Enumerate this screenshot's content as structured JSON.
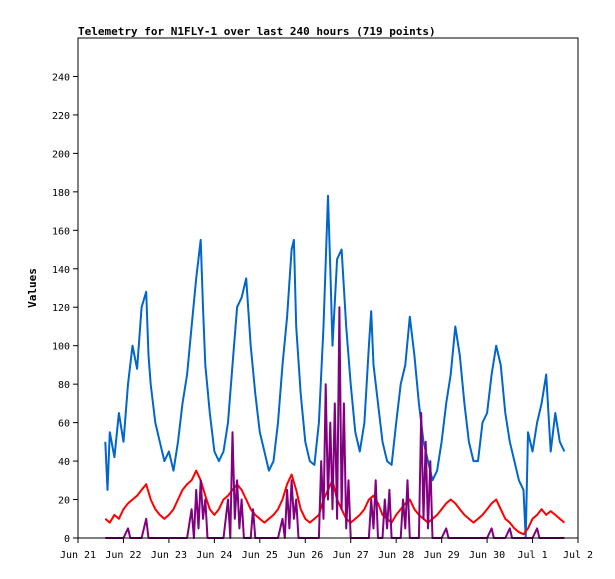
{
  "chart_data": {
    "type": "line",
    "title": "Telemetry for N1FLY-1 over last 240 hours (719 points)",
    "xlabel": "",
    "ylabel": "Values",
    "ylim": [
      0,
      260
    ],
    "y_ticks": [
      0,
      20,
      40,
      60,
      80,
      100,
      120,
      140,
      160,
      180,
      200,
      220,
      240
    ],
    "x_ticks": [
      "Jun 21",
      "Jun 22",
      "Jun 23",
      "Jun 24",
      "Jun 25",
      "Jun 26",
      "Jun 27",
      "Jun 28",
      "Jun 29",
      "Jun 30",
      "Jul 1",
      "Jul 2"
    ],
    "x_range_days": [
      0,
      11
    ],
    "grid": false,
    "colors": {
      "blue": "#0066cc",
      "red": "#ff0000",
      "purple": "#800080",
      "axis": "#000000"
    },
    "series": [
      {
        "color": "#0066cc",
        "points": [
          [
            0.6,
            50
          ],
          [
            0.65,
            25
          ],
          [
            0.7,
            55
          ],
          [
            0.8,
            42
          ],
          [
            0.9,
            65
          ],
          [
            1.0,
            50
          ],
          [
            1.1,
            80
          ],
          [
            1.2,
            100
          ],
          [
            1.3,
            88
          ],
          [
            1.4,
            120
          ],
          [
            1.5,
            128
          ],
          [
            1.55,
            95
          ],
          [
            1.6,
            80
          ],
          [
            1.7,
            60
          ],
          [
            1.8,
            50
          ],
          [
            1.9,
            40
          ],
          [
            2.0,
            45
          ],
          [
            2.1,
            35
          ],
          [
            2.2,
            50
          ],
          [
            2.3,
            70
          ],
          [
            2.4,
            85
          ],
          [
            2.5,
            110
          ],
          [
            2.6,
            135
          ],
          [
            2.7,
            155
          ],
          [
            2.75,
            120
          ],
          [
            2.8,
            90
          ],
          [
            2.9,
            65
          ],
          [
            3.0,
            45
          ],
          [
            3.1,
            40
          ],
          [
            3.2,
            45
          ],
          [
            3.3,
            60
          ],
          [
            3.4,
            90
          ],
          [
            3.5,
            120
          ],
          [
            3.6,
            125
          ],
          [
            3.7,
            135
          ],
          [
            3.8,
            100
          ],
          [
            3.9,
            75
          ],
          [
            4.0,
            55
          ],
          [
            4.1,
            45
          ],
          [
            4.2,
            35
          ],
          [
            4.3,
            40
          ],
          [
            4.4,
            60
          ],
          [
            4.5,
            90
          ],
          [
            4.6,
            115
          ],
          [
            4.7,
            150
          ],
          [
            4.75,
            155
          ],
          [
            4.8,
            110
          ],
          [
            4.9,
            75
          ],
          [
            5.0,
            50
          ],
          [
            5.1,
            40
          ],
          [
            5.2,
            38
          ],
          [
            5.3,
            60
          ],
          [
            5.4,
            110
          ],
          [
            5.5,
            178
          ],
          [
            5.55,
            140
          ],
          [
            5.6,
            100
          ],
          [
            5.7,
            145
          ],
          [
            5.8,
            150
          ],
          [
            5.9,
            110
          ],
          [
            6.0,
            80
          ],
          [
            6.1,
            55
          ],
          [
            6.2,
            45
          ],
          [
            6.3,
            60
          ],
          [
            6.4,
            100
          ],
          [
            6.45,
            118
          ],
          [
            6.5,
            90
          ],
          [
            6.6,
            70
          ],
          [
            6.7,
            50
          ],
          [
            6.8,
            40
          ],
          [
            6.9,
            38
          ],
          [
            7.0,
            60
          ],
          [
            7.1,
            80
          ],
          [
            7.2,
            90
          ],
          [
            7.3,
            115
          ],
          [
            7.4,
            95
          ],
          [
            7.5,
            70
          ],
          [
            7.6,
            50
          ],
          [
            7.7,
            40
          ],
          [
            7.8,
            30
          ],
          [
            7.9,
            35
          ],
          [
            8.0,
            50
          ],
          [
            8.1,
            70
          ],
          [
            8.2,
            85
          ],
          [
            8.3,
            110
          ],
          [
            8.4,
            95
          ],
          [
            8.5,
            70
          ],
          [
            8.6,
            50
          ],
          [
            8.7,
            40
          ],
          [
            8.8,
            40
          ],
          [
            8.9,
            60
          ],
          [
            9.0,
            65
          ],
          [
            9.1,
            85
          ],
          [
            9.2,
            100
          ],
          [
            9.3,
            90
          ],
          [
            9.4,
            65
          ],
          [
            9.5,
            50
          ],
          [
            9.6,
            40
          ],
          [
            9.7,
            30
          ],
          [
            9.8,
            25
          ],
          [
            9.85,
            0
          ],
          [
            9.9,
            55
          ],
          [
            10.0,
            45
          ],
          [
            10.1,
            60
          ],
          [
            10.2,
            70
          ],
          [
            10.3,
            85
          ],
          [
            10.4,
            45
          ],
          [
            10.5,
            65
          ],
          [
            10.6,
            50
          ],
          [
            10.7,
            45
          ]
        ]
      },
      {
        "color": "#ff0000",
        "points": [
          [
            0.6,
            10
          ],
          [
            0.7,
            8
          ],
          [
            0.8,
            12
          ],
          [
            0.9,
            10
          ],
          [
            1.0,
            15
          ],
          [
            1.1,
            18
          ],
          [
            1.2,
            20
          ],
          [
            1.3,
            22
          ],
          [
            1.4,
            25
          ],
          [
            1.5,
            28
          ],
          [
            1.6,
            20
          ],
          [
            1.7,
            15
          ],
          [
            1.8,
            12
          ],
          [
            1.9,
            10
          ],
          [
            2.0,
            12
          ],
          [
            2.1,
            15
          ],
          [
            2.2,
            20
          ],
          [
            2.3,
            25
          ],
          [
            2.4,
            28
          ],
          [
            2.5,
            30
          ],
          [
            2.6,
            35
          ],
          [
            2.7,
            30
          ],
          [
            2.8,
            22
          ],
          [
            2.9,
            15
          ],
          [
            3.0,
            12
          ],
          [
            3.1,
            15
          ],
          [
            3.2,
            20
          ],
          [
            3.3,
            22
          ],
          [
            3.4,
            25
          ],
          [
            3.5,
            28
          ],
          [
            3.6,
            25
          ],
          [
            3.7,
            20
          ],
          [
            3.8,
            15
          ],
          [
            3.9,
            12
          ],
          [
            4.0,
            10
          ],
          [
            4.1,
            8
          ],
          [
            4.2,
            10
          ],
          [
            4.3,
            12
          ],
          [
            4.4,
            15
          ],
          [
            4.5,
            20
          ],
          [
            4.6,
            28
          ],
          [
            4.7,
            33
          ],
          [
            4.8,
            25
          ],
          [
            4.9,
            15
          ],
          [
            5.0,
            10
          ],
          [
            5.1,
            8
          ],
          [
            5.2,
            10
          ],
          [
            5.3,
            12
          ],
          [
            5.4,
            20
          ],
          [
            5.5,
            25
          ],
          [
            5.6,
            30
          ],
          [
            5.7,
            20
          ],
          [
            5.8,
            15
          ],
          [
            5.9,
            10
          ],
          [
            6.0,
            8
          ],
          [
            6.1,
            10
          ],
          [
            6.2,
            12
          ],
          [
            6.3,
            15
          ],
          [
            6.4,
            20
          ],
          [
            6.5,
            22
          ],
          [
            6.6,
            18
          ],
          [
            6.7,
            12
          ],
          [
            6.8,
            10
          ],
          [
            6.9,
            8
          ],
          [
            7.0,
            12
          ],
          [
            7.1,
            15
          ],
          [
            7.2,
            18
          ],
          [
            7.3,
            20
          ],
          [
            7.4,
            15
          ],
          [
            7.5,
            12
          ],
          [
            7.6,
            10
          ],
          [
            7.7,
            8
          ],
          [
            7.8,
            10
          ],
          [
            7.9,
            12
          ],
          [
            8.0,
            15
          ],
          [
            8.1,
            18
          ],
          [
            8.2,
            20
          ],
          [
            8.3,
            18
          ],
          [
            8.4,
            15
          ],
          [
            8.5,
            12
          ],
          [
            8.6,
            10
          ],
          [
            8.7,
            8
          ],
          [
            8.8,
            10
          ],
          [
            8.9,
            12
          ],
          [
            9.0,
            15
          ],
          [
            9.1,
            18
          ],
          [
            9.2,
            20
          ],
          [
            9.3,
            15
          ],
          [
            9.4,
            10
          ],
          [
            9.5,
            8
          ],
          [
            9.6,
            5
          ],
          [
            9.7,
            3
          ],
          [
            9.8,
            2
          ],
          [
            9.9,
            5
          ],
          [
            10.0,
            10
          ],
          [
            10.1,
            12
          ],
          [
            10.2,
            15
          ],
          [
            10.3,
            12
          ],
          [
            10.4,
            14
          ],
          [
            10.5,
            12
          ],
          [
            10.6,
            10
          ],
          [
            10.7,
            8
          ]
        ]
      },
      {
        "color": "#800080",
        "points": [
          [
            0.6,
            0
          ],
          [
            1.0,
            0
          ],
          [
            1.1,
            5
          ],
          [
            1.15,
            0
          ],
          [
            1.4,
            0
          ],
          [
            1.5,
            10
          ],
          [
            1.55,
            0
          ],
          [
            2.4,
            0
          ],
          [
            2.5,
            15
          ],
          [
            2.55,
            0
          ],
          [
            2.6,
            25
          ],
          [
            2.65,
            5
          ],
          [
            2.7,
            30
          ],
          [
            2.75,
            10
          ],
          [
            2.8,
            20
          ],
          [
            2.85,
            0
          ],
          [
            3.2,
            0
          ],
          [
            3.3,
            20
          ],
          [
            3.35,
            0
          ],
          [
            3.4,
            55
          ],
          [
            3.45,
            10
          ],
          [
            3.5,
            30
          ],
          [
            3.55,
            5
          ],
          [
            3.6,
            20
          ],
          [
            3.65,
            0
          ],
          [
            3.8,
            0
          ],
          [
            3.85,
            15
          ],
          [
            3.9,
            0
          ],
          [
            4.4,
            0
          ],
          [
            4.5,
            10
          ],
          [
            4.55,
            0
          ],
          [
            4.6,
            25
          ],
          [
            4.65,
            5
          ],
          [
            4.7,
            30
          ],
          [
            4.75,
            10
          ],
          [
            4.8,
            20
          ],
          [
            4.85,
            0
          ],
          [
            5.3,
            0
          ],
          [
            5.35,
            40
          ],
          [
            5.4,
            10
          ],
          [
            5.45,
            80
          ],
          [
            5.5,
            20
          ],
          [
            5.55,
            60
          ],
          [
            5.6,
            15
          ],
          [
            5.65,
            70
          ],
          [
            5.7,
            10
          ],
          [
            5.75,
            120
          ],
          [
            5.8,
            15
          ],
          [
            5.85,
            70
          ],
          [
            5.9,
            5
          ],
          [
            5.95,
            30
          ],
          [
            6.0,
            0
          ],
          [
            6.4,
            0
          ],
          [
            6.45,
            20
          ],
          [
            6.5,
            5
          ],
          [
            6.55,
            30
          ],
          [
            6.6,
            0
          ],
          [
            6.7,
            0
          ],
          [
            6.75,
            20
          ],
          [
            6.8,
            5
          ],
          [
            6.85,
            25
          ],
          [
            6.9,
            0
          ],
          [
            7.1,
            0
          ],
          [
            7.15,
            20
          ],
          [
            7.2,
            5
          ],
          [
            7.25,
            30
          ],
          [
            7.3,
            0
          ],
          [
            7.5,
            0
          ],
          [
            7.55,
            65
          ],
          [
            7.6,
            10
          ],
          [
            7.65,
            50
          ],
          [
            7.7,
            5
          ],
          [
            7.75,
            40
          ],
          [
            7.8,
            0
          ],
          [
            8.0,
            0
          ],
          [
            8.1,
            5
          ],
          [
            8.15,
            0
          ],
          [
            9.0,
            0
          ],
          [
            9.1,
            5
          ],
          [
            9.15,
            0
          ],
          [
            9.4,
            0
          ],
          [
            9.5,
            5
          ],
          [
            9.55,
            0
          ],
          [
            10.0,
            0
          ],
          [
            10.1,
            5
          ],
          [
            10.15,
            0
          ],
          [
            10.6,
            0
          ],
          [
            10.7,
            0
          ]
        ]
      }
    ]
  }
}
